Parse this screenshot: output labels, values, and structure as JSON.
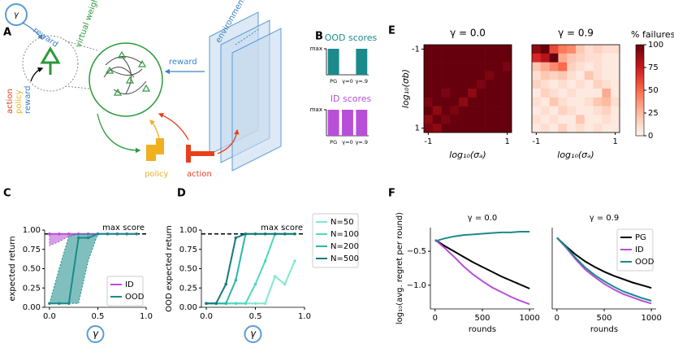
{
  "panels": [
    "A",
    "B",
    "C",
    "D",
    "E",
    "F"
  ],
  "diagram": {
    "gamma": "γ",
    "reward_in": "reward",
    "virtual_weights": "virtual weights",
    "action": "action",
    "policy": "policy",
    "reward_side": "reward",
    "reward_env": "reward",
    "environments": "environments",
    "policy_box": "policy",
    "action_box": "action"
  },
  "chart_data": [
    {
      "type": "bar",
      "title": "OOD scores",
      "color": "#1a8a8a",
      "categories": [
        "PG",
        "γ=0",
        "γ=.9"
      ],
      "values": [
        1,
        0,
        1
      ],
      "ylim": [
        0,
        1
      ],
      "yticks": [
        {
          "value": 1,
          "label": "max"
        }
      ]
    },
    {
      "type": "bar",
      "title": "ID scores",
      "color": "#b84fd8",
      "categories": [
        "PG",
        "γ=0",
        "γ=.9"
      ],
      "values": [
        1,
        1,
        1
      ],
      "ylim": [
        0,
        1
      ],
      "yticks": [
        {
          "value": 1,
          "label": "max"
        }
      ]
    },
    {
      "type": "heatmap",
      "title": "γ = 0.0",
      "cmap": "Reds",
      "xlabel": "log₁₀(σₐ)",
      "ylabel": "log₁₀(σb)",
      "xlim": [
        -1.11,
        1.11
      ],
      "ylim": [
        -1.11,
        1.11
      ],
      "y_inverted": true,
      "xticks": [
        -1,
        1
      ],
      "yticks": [
        -1,
        1
      ],
      "zlim": [
        0,
        100
      ],
      "values": [
        [
          100,
          100,
          100,
          100,
          100,
          100,
          100,
          100,
          100,
          100
        ],
        [
          100,
          100,
          100,
          100,
          100,
          100,
          100,
          100,
          100,
          100
        ],
        [
          100,
          100,
          100,
          100,
          100,
          100,
          100,
          100,
          100,
          95
        ],
        [
          100,
          100,
          100,
          100,
          100,
          100,
          100,
          95,
          100,
          100
        ],
        [
          100,
          100,
          100,
          100,
          100,
          100,
          95,
          100,
          100,
          100
        ],
        [
          100,
          100,
          95,
          100,
          100,
          90,
          100,
          100,
          100,
          100
        ],
        [
          95,
          100,
          100,
          100,
          90,
          100,
          100,
          100,
          100,
          100
        ],
        [
          100,
          90,
          100,
          95,
          100,
          100,
          100,
          100,
          100,
          100
        ],
        [
          90,
          100,
          95,
          100,
          100,
          100,
          100,
          100,
          100,
          100
        ],
        [
          95,
          90,
          100,
          100,
          100,
          100,
          100,
          100,
          100,
          100
        ]
      ]
    },
    {
      "type": "heatmap",
      "title": "γ = 0.9",
      "cmap": "Reds",
      "xlabel": "log₁₀(σₐ)",
      "xlim": [
        -1.11,
        1.11
      ],
      "ylim": [
        -1.11,
        1.11
      ],
      "y_inverted": true,
      "xticks": [
        -1,
        1
      ],
      "zlim": [
        0,
        100
      ],
      "values": [
        [
          90,
          100,
          60,
          45,
          40,
          20,
          10,
          15,
          10,
          10
        ],
        [
          70,
          80,
          100,
          30,
          20,
          15,
          10,
          10,
          5,
          5
        ],
        [
          20,
          30,
          40,
          50,
          15,
          10,
          5,
          10,
          5,
          5
        ],
        [
          10,
          20,
          15,
          20,
          10,
          5,
          20,
          10,
          5,
          5
        ],
        [
          15,
          10,
          5,
          10,
          5,
          10,
          5,
          15,
          10,
          5
        ],
        [
          5,
          15,
          10,
          5,
          10,
          5,
          5,
          5,
          30,
          5
        ],
        [
          10,
          5,
          20,
          10,
          5,
          5,
          10,
          20,
          25,
          10
        ],
        [
          5,
          10,
          5,
          15,
          10,
          5,
          5,
          10,
          15,
          5
        ],
        [
          10,
          5,
          10,
          5,
          5,
          20,
          5,
          5,
          10,
          5
        ],
        [
          5,
          10,
          5,
          15,
          5,
          10,
          5,
          10,
          5,
          5
        ]
      ],
      "colorbar": {
        "label": "% failures",
        "ticks": [
          0,
          25,
          50,
          75,
          100
        ]
      }
    },
    {
      "type": "line",
      "xlabel": "γ",
      "ylabel": "expected return",
      "xlim": [
        -0.05,
        1.0
      ],
      "ylim": [
        0,
        1.0
      ],
      "xticks": [
        {
          "value": 0,
          "label": "0.0"
        },
        {
          "value": 0.5,
          "label": "0.5"
        },
        {
          "value": 1.0,
          "label": "1.0"
        }
      ],
      "yticks": [
        {
          "value": 0,
          "label": "0.00"
        },
        {
          "value": 0.25,
          "label": "0.25"
        },
        {
          "value": 0.5,
          "label": "0.50"
        },
        {
          "value": 0.75,
          "label": "0.75"
        },
        {
          "value": 1.0,
          "label": "1.00"
        }
      ],
      "hline": 0.95,
      "annotation": "max score",
      "marker": true,
      "legend": "lower right",
      "x": [
        0,
        0.1,
        0.2,
        0.3,
        0.4,
        0.5,
        0.6,
        0.7,
        0.8,
        0.9
      ],
      "series": [
        {
          "name": "ID",
          "color": "#b84fd8",
          "values": [
            0.95,
            0.95,
            0.95,
            0.95,
            0.95,
            0.95,
            0.95,
            0.95,
            0.95,
            0.95
          ],
          "lower": [
            0.8,
            0.85,
            0.92,
            0.95,
            0.95,
            0.95,
            0.95,
            0.95,
            0.95,
            0.95
          ],
          "upper": [
            0.95,
            0.95,
            0.95,
            0.95,
            0.95,
            0.95,
            0.95,
            0.95,
            0.95,
            0.95
          ]
        },
        {
          "name": "OOD",
          "color": "#1a8a8a",
          "values": [
            0.05,
            0.05,
            0.05,
            0.9,
            0.9,
            0.95,
            0.95,
            0.95,
            0.95,
            0.95
          ],
          "lower": [
            0.05,
            0.05,
            0.05,
            0.05,
            0.6,
            0.95,
            0.95,
            0.95,
            0.95,
            0.95
          ],
          "upper": [
            0.05,
            0.5,
            0.92,
            0.95,
            0.95,
            0.95,
            0.95,
            0.95,
            0.95,
            0.95
          ]
        }
      ]
    },
    {
      "type": "line",
      "xlabel": "γ",
      "ylabel": "OOD expected return",
      "xlim": [
        -0.05,
        1.0
      ],
      "ylim": [
        0,
        1.0
      ],
      "xticks": [
        {
          "value": 0,
          "label": "0.0"
        },
        {
          "value": 0.5,
          "label": "0.5"
        },
        {
          "value": 1.0,
          "label": "1.0"
        }
      ],
      "yticks": [
        {
          "value": 0,
          "label": "0.00"
        },
        {
          "value": 0.25,
          "label": "0.25"
        },
        {
          "value": 0.5,
          "label": "0.50"
        },
        {
          "value": 0.75,
          "label": "0.75"
        },
        {
          "value": 1.0,
          "label": "1.00"
        }
      ],
      "hline": 0.95,
      "annotation": "max score",
      "marker": true,
      "legend": "outside right",
      "x": [
        0,
        0.1,
        0.2,
        0.3,
        0.4,
        0.5,
        0.6,
        0.7,
        0.8,
        0.9
      ],
      "series": [
        {
          "name": "N=50",
          "color": "#7fe8d0",
          "values": [
            0.05,
            0.05,
            0.05,
            0.05,
            0.05,
            0.05,
            0.05,
            0.4,
            0.3,
            0.6
          ]
        },
        {
          "name": "N=100",
          "color": "#4fd8c0",
          "values": [
            0.05,
            0.05,
            0.05,
            0.05,
            0.05,
            0.3,
            0.6,
            0.95,
            0.95,
            0.95
          ]
        },
        {
          "name": "N=200",
          "color": "#2ab8a8",
          "values": [
            0.05,
            0.05,
            0.05,
            0.35,
            0.95,
            0.95,
            0.95,
            0.95,
            0.95,
            0.95
          ]
        },
        {
          "name": "N=500",
          "color": "#167a7a",
          "values": [
            0.05,
            0.05,
            0.3,
            0.9,
            0.95,
            0.95,
            0.95,
            0.95,
            0.95,
            0.95
          ]
        }
      ]
    },
    {
      "type": "line",
      "title": "γ = 0.0",
      "xlabel": "rounds",
      "ylabel": "log₁₀(avg. regret per round)",
      "xlim": [
        -50,
        1050
      ],
      "ylim": [
        -1.35,
        -0.15
      ],
      "xticks": [
        0,
        500,
        1000
      ],
      "yticks": [
        {
          "value": -0.5,
          "label": "−0.5"
        },
        {
          "value": -1.0,
          "label": "−1.0"
        }
      ],
      "x": [
        0,
        100,
        200,
        300,
        400,
        500,
        600,
        700,
        800,
        900,
        1000
      ],
      "series": [
        {
          "color": "#000000",
          "values": [
            -0.33,
            -0.42,
            -0.5,
            -0.58,
            -0.66,
            -0.73,
            -0.8,
            -0.87,
            -0.93,
            -0.99,
            -1.05
          ]
        },
        {
          "color": "#b84fd8",
          "values": [
            -0.33,
            -0.45,
            -0.58,
            -0.72,
            -0.84,
            -0.94,
            -1.03,
            -1.1,
            -1.17,
            -1.23,
            -1.28
          ]
        },
        {
          "color": "#1a8a8a",
          "values": [
            -0.35,
            -0.31,
            -0.28,
            -0.26,
            -0.25,
            -0.24,
            -0.23,
            -0.22,
            -0.22,
            -0.21,
            -0.21
          ]
        }
      ]
    },
    {
      "type": "line",
      "title": "γ = 0.9",
      "xlabel": "rounds",
      "xlim": [
        -50,
        1050
      ],
      "ylim": [
        -1.35,
        -0.15
      ],
      "xticks": [
        0,
        500,
        1000
      ],
      "legend": "upper right",
      "x": [
        0,
        100,
        200,
        300,
        400,
        500,
        600,
        700,
        800,
        900,
        1000
      ],
      "series": [
        {
          "name": "PG",
          "color": "#000000",
          "values": [
            -0.3,
            -0.43,
            -0.55,
            -0.65,
            -0.73,
            -0.8,
            -0.86,
            -0.91,
            -0.96,
            -1.0,
            -1.04
          ]
        },
        {
          "name": "ID",
          "color": "#b84fd8",
          "values": [
            -0.3,
            -0.45,
            -0.62,
            -0.77,
            -0.88,
            -0.98,
            -1.06,
            -1.13,
            -1.18,
            -1.23,
            -1.27
          ]
        },
        {
          "name": "OOD",
          "color": "#1a8a8a",
          "values": [
            -0.3,
            -0.44,
            -0.6,
            -0.74,
            -0.85,
            -0.94,
            -1.02,
            -1.09,
            -1.14,
            -1.19,
            -1.23
          ]
        }
      ]
    }
  ]
}
